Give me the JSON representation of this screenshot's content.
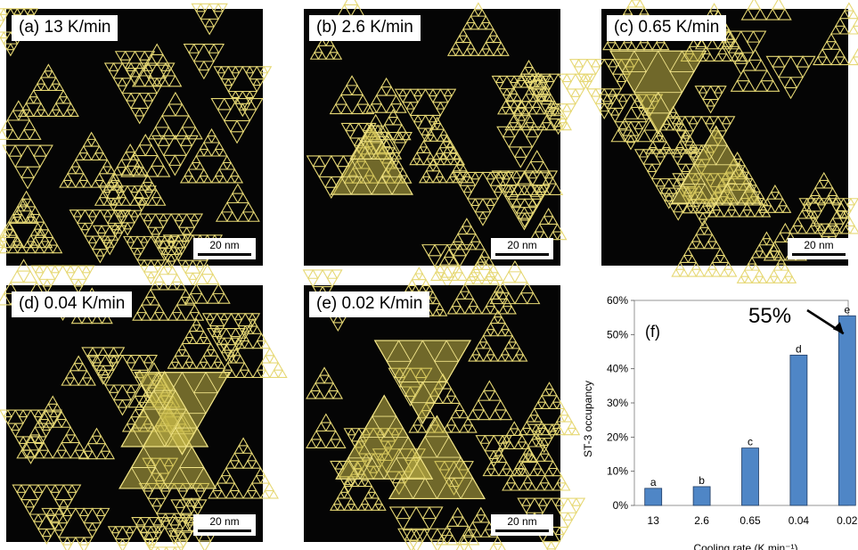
{
  "panels": [
    {
      "label": "(a) 13 K/min",
      "scale": "20 nm",
      "highlights": 0
    },
    {
      "label": "(b) 2.6 K/min",
      "scale": "20 nm",
      "highlights": 1
    },
    {
      "label": "(c) 0.65 K/min",
      "scale": "20 nm",
      "highlights": 2
    },
    {
      "label": "(d) 0.04 K/min",
      "scale": "20 nm",
      "highlights": 3
    },
    {
      "label": "(e) 0.02 K/min",
      "scale": "20 nm",
      "highlights": 3
    }
  ],
  "colors": {
    "background": "#050505",
    "molecule": "#e6d874",
    "highlight": "#c8b948",
    "bar": "#4f86c6"
  },
  "chart_data": {
    "type": "bar",
    "panel_label": "(f)",
    "categories": [
      "13",
      "2.6",
      "0.65",
      "0.04",
      "0.02"
    ],
    "values": [
      5,
      5.5,
      16.8,
      44,
      55.5
    ],
    "bar_labels": [
      "a",
      "b",
      "c",
      "d",
      "e"
    ],
    "ylabel": "ST-3 occupancy",
    "xlabel": "Cooling rate (K min⁻¹)",
    "ylim": [
      0,
      60
    ],
    "yticks": [
      "0%",
      "10%",
      "20%",
      "30%",
      "40%",
      "50%",
      "60%"
    ],
    "annotation": "55%"
  }
}
